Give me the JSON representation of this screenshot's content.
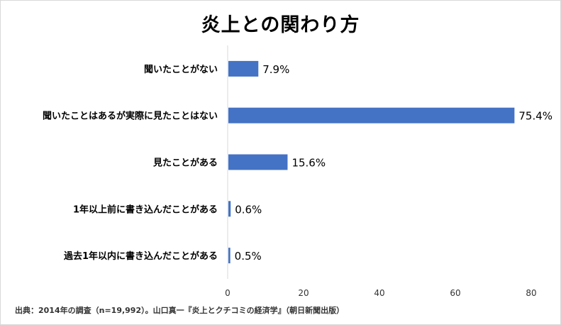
{
  "chart_data": {
    "type": "bar",
    "orientation": "horizontal",
    "title": "炎上との関わり方",
    "categories": [
      "聞いたことがない",
      "聞いたことはあるが実際に見たことはない",
      "見たことがある",
      "1年以上前に書き込んだことがある",
      "過去1年以内に書き込んだことがある"
    ],
    "values": [
      7.9,
      75.4,
      15.6,
      0.6,
      0.5
    ],
    "value_labels": [
      "7.9%",
      "75.4%",
      "15.6%",
      "0.6%",
      "0.5%"
    ],
    "xlim": [
      0,
      80
    ],
    "xticks": [
      0,
      20,
      40,
      60,
      80
    ],
    "grid": false,
    "bar_color": "#4472c4",
    "axis_color": "#d9d9d9"
  },
  "source": "出典：2014年の調査（n=19,992）。山口真一『炎上とクチコミの経済学』（朝日新聞出版）"
}
